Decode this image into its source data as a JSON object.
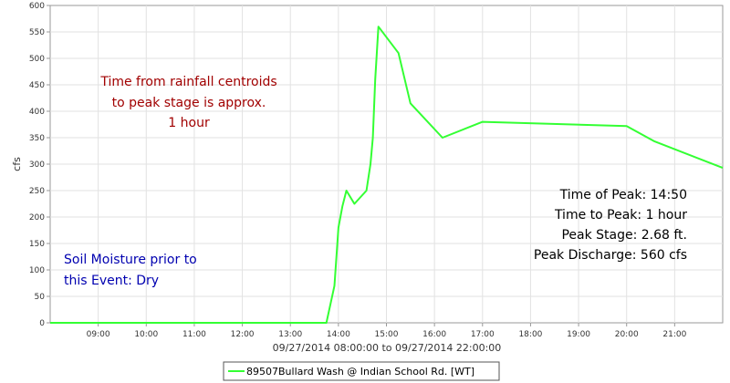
{
  "chart_data": {
    "type": "line",
    "xlabel": "09/27/2014 08:00:00 to 09/27/2014 22:00:00",
    "ylabel": "cfs",
    "ylim": [
      0,
      600
    ],
    "yticks": [
      0,
      50,
      100,
      150,
      200,
      250,
      300,
      350,
      400,
      450,
      500,
      550,
      600
    ],
    "xlim": [
      "08:00",
      "22:00"
    ],
    "xticks": [
      "09:00",
      "10:00",
      "11:00",
      "12:00",
      "13:00",
      "14:00",
      "15:00",
      "16:00",
      "17:00",
      "18:00",
      "19:00",
      "20:00",
      "21:00"
    ],
    "grid": true,
    "legend_position": "bottom-center",
    "series": [
      {
        "name": "89507Bullard Wash @ Indian School Rd. [WT]",
        "color": "#33ff33",
        "points": [
          [
            "08:00",
            0
          ],
          [
            "13:45",
            0
          ],
          [
            "13:55",
            70
          ],
          [
            "14:00",
            180
          ],
          [
            "14:05",
            220
          ],
          [
            "14:10",
            250
          ],
          [
            "14:20",
            225
          ],
          [
            "14:35",
            250
          ],
          [
            "14:40",
            300
          ],
          [
            "14:43",
            350
          ],
          [
            "14:46",
            460
          ],
          [
            "14:50",
            560
          ],
          [
            "15:15",
            510
          ],
          [
            "15:30",
            415
          ],
          [
            "16:10",
            350
          ],
          [
            "17:00",
            380
          ],
          [
            "20:00",
            372
          ],
          [
            "20:35",
            343
          ],
          [
            "22:00",
            293
          ]
        ]
      }
    ],
    "annotations": {
      "rainfall_lines": [
        "Time from rainfall centroids",
        "to peak stage is approx.",
        "1 hour"
      ],
      "soil_lines": [
        "Soil Moisture prior to",
        "this Event: Dry"
      ],
      "peak_lines": [
        "Time of Peak: 14:50",
        "Time to Peak: 1 hour",
        "Peak Stage: 2.68 ft.",
        "Peak Discharge: 560 cfs"
      ]
    }
  }
}
